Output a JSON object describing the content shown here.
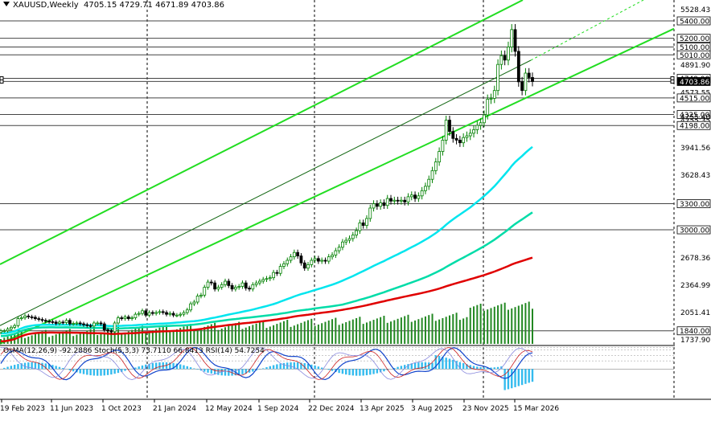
{
  "header": {
    "symbol": "XAUUSD,Weekly",
    "ohlc": "4705.15 4729.71 4671.89 4703.86"
  },
  "indicator_header": {
    "osma": "OsMA(12,26,9) -92.2886",
    "stoch": "Stoch(5,3,3) 73.7110 66.8413",
    "rsi": "RSI(14) 54.7254"
  },
  "colors": {
    "bull_candle": "#008000",
    "bear_candle": "#000000",
    "ma_red": "#e00000",
    "ma_cyan": "#00e5ee",
    "ma_teal": "#00dca8",
    "channel_green": "#22dd22",
    "grid_dark": "#000000",
    "osma_bar": "#33bbee",
    "volume_bar": "#228822",
    "stoch_main": "#1144cc",
    "stoch_signal": "#cc2222",
    "rsi": "#8888dd"
  },
  "chart_data": {
    "type": "candlestick",
    "symbol": "XAUUSD",
    "timeframe": "Weekly",
    "last_bar": {
      "open": 4705.15,
      "high": 4729.71,
      "low": 4671.89,
      "close": 4703.86
    },
    "price_scale_ticks": [
      5528.43,
      4891.9,
      4573.55,
      4255.35,
      3941.56,
      3628.43,
      2678.36,
      2364.99,
      2051.41,
      1737.9
    ],
    "price_scale_range": [
      1690,
      5640
    ],
    "level_labels": [
      5400.0,
      5200.0,
      5100.0,
      5010.0,
      4740.0,
      4703.86,
      4515.0,
      4325.0,
      4198.0,
      3300.0,
      3000.0,
      1840.0
    ],
    "partial_tick_label": "4255.40",
    "time_labels": [
      "19 Feb 2023",
      "11 Jun 2023",
      "1 Oct 2023",
      "21 Jan 2024",
      "12 May 2024",
      "1 Sep 2024",
      "22 Dec 2024",
      "13 Apr 2025",
      "3 Aug 2025",
      "23 Nov 2025",
      "15 Mar 2026"
    ],
    "weekly_close_approx": [
      1840,
      1840,
      1860,
      1880,
      1900,
      1980,
      1990,
      2010,
      2000,
      1995,
      1980,
      1970,
      1960,
      1950,
      1945,
      1940,
      1925,
      1940,
      1935,
      1960,
      1920,
      1925,
      1930,
      1920,
      1910,
      1900,
      1895,
      1930,
      1930,
      1920,
      1850,
      1840,
      1830,
      1930,
      1990,
      1980,
      2000,
      1980,
      1990,
      2030,
      2040,
      2070,
      2020,
      2050,
      2040,
      2050,
      2060,
      2050,
      2030,
      2040,
      2020,
      2020,
      2030,
      2050,
      2080,
      2150,
      2170,
      2240,
      2250,
      2340,
      2400,
      2390,
      2320,
      2340,
      2370,
      2410,
      2360,
      2320,
      2340,
      2350,
      2390,
      2330,
      2320,
      2370,
      2390,
      2410,
      2430,
      2440,
      2450,
      2510,
      2500,
      2580,
      2610,
      2650,
      2690,
      2740,
      2700,
      2620,
      2560,
      2600,
      2650,
      2670,
      2640,
      2650,
      2640,
      2690,
      2710,
      2760,
      2800,
      2860,
      2880,
      2900,
      2940,
      2990,
      3080,
      3050,
      3130,
      3250,
      3300,
      3270,
      3310,
      3280,
      3360,
      3330,
      3340,
      3330,
      3340,
      3320,
      3380,
      3400,
      3360,
      3390,
      3450,
      3500,
      3580,
      3680,
      3780,
      3900,
      4030,
      4260,
      4130,
      4050,
      4030,
      4000,
      4060,
      4080,
      4110,
      4150,
      4200,
      4230,
      4320,
      4500,
      4510,
      4600,
      4900,
      5000,
      4950,
      5100,
      5300,
      5050,
      4700,
      4600,
      4800,
      4750,
      4703.86
    ],
    "indicators": {
      "moving_averages": [
        "red (slow)",
        "teal (medium)",
        "cyan (fast)"
      ],
      "osma": {
        "params": "12,26,9",
        "value": -92.2886
      },
      "stochastic": {
        "params": "5,3,3",
        "k": 73.711,
        "d": 66.8413
      },
      "rsi": {
        "params": "14",
        "value": 54.7254
      },
      "subwindow_scale": {
        "top": "87.0152",
        "bottom": "-112.1516",
        "levels": [
          "80",
          "70",
          "50",
          "30"
        ]
      }
    }
  }
}
